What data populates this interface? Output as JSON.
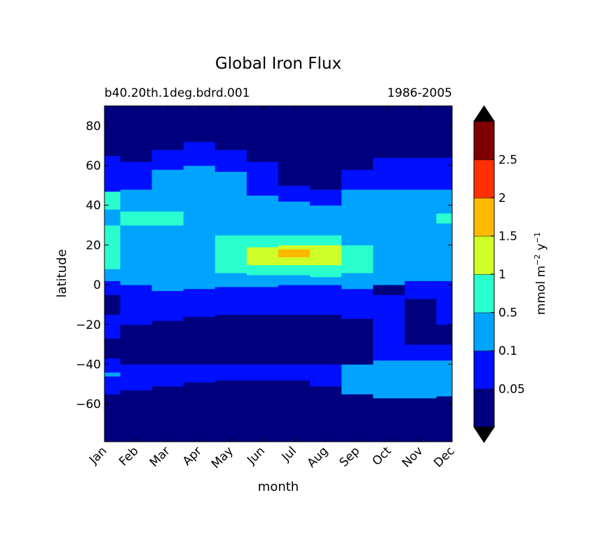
{
  "chart_data": {
    "type": "heatmap",
    "title": "Global Iron Flux",
    "subtitle_left": "b40.20th.1deg.bdrd.001",
    "subtitle_right": "1986-2005",
    "xlabel": "month",
    "ylabel": "latitude",
    "x_ticks": [
      "Jan",
      "Feb",
      "Mar",
      "Apr",
      "May",
      "Jun",
      "Jul",
      "Aug",
      "Sep",
      "Oct",
      "Nov",
      "Dec"
    ],
    "ylim": [
      -79,
      90
    ],
    "y_ticks": [
      {
        "value": 80,
        "label": "80"
      },
      {
        "value": 60,
        "label": "60"
      },
      {
        "value": 40,
        "label": "40"
      },
      {
        "value": 20,
        "label": "20"
      },
      {
        "value": 0,
        "label": "0"
      },
      {
        "value": -20,
        "label": "−20"
      },
      {
        "value": -40,
        "label": "−40"
      },
      {
        "value": -60,
        "label": "−60"
      }
    ],
    "colorbar": {
      "label_main": "mmol m",
      "label_exp1": "−2",
      "label_mid": " y",
      "label_exp2": "−1",
      "levels": [
        "0.05",
        "0.1",
        "0.5",
        "1",
        "1.5",
        "2",
        "2.5"
      ],
      "colors": [
        "#00007f",
        "#0010ff",
        "#00a4ff",
        "#29ffce",
        "#ceff29",
        "#ffb900",
        "#ff3000",
        "#7f0000"
      ],
      "extend_min_color": "#000000",
      "extend_max_color": "#000000"
    },
    "bands": [
      {
        "month": 0,
        "levels": [
          [
            -79,
            -55,
            0
          ],
          [
            -55,
            -46,
            1
          ],
          [
            -46,
            -44,
            2
          ],
          [
            -44,
            -37,
            1
          ],
          [
            -37,
            -27,
            0
          ],
          [
            -27,
            -15,
            1
          ],
          [
            -15,
            -5,
            0
          ],
          [
            -5,
            2,
            1
          ],
          [
            2,
            8,
            2
          ],
          [
            8,
            30,
            3
          ],
          [
            30,
            38,
            2
          ],
          [
            38,
            47,
            3
          ],
          [
            47,
            65,
            1
          ],
          [
            65,
            90,
            0
          ]
        ]
      },
      {
        "month": 1,
        "levels": [
          [
            -79,
            -53,
            0
          ],
          [
            -53,
            -40,
            1
          ],
          [
            -40,
            -20,
            0
          ],
          [
            -20,
            -5,
            1
          ],
          [
            -5,
            0,
            1
          ],
          [
            0,
            9,
            2
          ],
          [
            9,
            30,
            2
          ],
          [
            30,
            37,
            3
          ],
          [
            37,
            48,
            2
          ],
          [
            48,
            62,
            1
          ],
          [
            62,
            90,
            0
          ]
        ]
      },
      {
        "month": 2,
        "levels": [
          [
            -79,
            -51,
            0
          ],
          [
            -51,
            -40,
            1
          ],
          [
            -40,
            -18,
            0
          ],
          [
            -18,
            -3,
            1
          ],
          [
            -3,
            9,
            2
          ],
          [
            9,
            30,
            2
          ],
          [
            30,
            37,
            3
          ],
          [
            37,
            50,
            2
          ],
          [
            50,
            58,
            2
          ],
          [
            58,
            68,
            1
          ],
          [
            68,
            90,
            0
          ]
        ]
      },
      {
        "month": 3,
        "levels": [
          [
            -79,
            -49,
            0
          ],
          [
            -49,
            -40,
            1
          ],
          [
            -40,
            -16,
            0
          ],
          [
            -16,
            -2,
            1
          ],
          [
            -2,
            8,
            2
          ],
          [
            8,
            13,
            2
          ],
          [
            13,
            30,
            2
          ],
          [
            30,
            52,
            2
          ],
          [
            52,
            60,
            2
          ],
          [
            60,
            72,
            1
          ],
          [
            72,
            90,
            0
          ]
        ]
      },
      {
        "month": 4,
        "levels": [
          [
            -79,
            -48,
            0
          ],
          [
            -48,
            -40,
            1
          ],
          [
            -40,
            -15,
            0
          ],
          [
            -15,
            -1,
            1
          ],
          [
            -1,
            6,
            2
          ],
          [
            6,
            13,
            3
          ],
          [
            13,
            25,
            3
          ],
          [
            25,
            48,
            2
          ],
          [
            48,
            57,
            2
          ],
          [
            57,
            68,
            1
          ],
          [
            68,
            90,
            0
          ]
        ]
      },
      {
        "month": 5,
        "levels": [
          [
            -79,
            -48,
            0
          ],
          [
            -48,
            -40,
            1
          ],
          [
            -40,
            -15,
            0
          ],
          [
            -15,
            -1,
            1
          ],
          [
            -1,
            5,
            2
          ],
          [
            5,
            10,
            3
          ],
          [
            10,
            19,
            4
          ],
          [
            19,
            25,
            3
          ],
          [
            25,
            45,
            2
          ],
          [
            45,
            55,
            1
          ],
          [
            55,
            62,
            1
          ],
          [
            62,
            90,
            0
          ]
        ]
      },
      {
        "month": 6,
        "levels": [
          [
            -79,
            -48,
            0
          ],
          [
            -48,
            -40,
            1
          ],
          [
            -40,
            -15,
            0
          ],
          [
            -15,
            0,
            1
          ],
          [
            0,
            5,
            2
          ],
          [
            5,
            10,
            3
          ],
          [
            10,
            14,
            4
          ],
          [
            14,
            18,
            5
          ],
          [
            18,
            20,
            4
          ],
          [
            20,
            25,
            3
          ],
          [
            25,
            42,
            2
          ],
          [
            42,
            50,
            1
          ],
          [
            50,
            90,
            0
          ]
        ]
      },
      {
        "month": 7,
        "levels": [
          [
            -79,
            -51,
            0
          ],
          [
            -51,
            -40,
            1
          ],
          [
            -40,
            -15,
            0
          ],
          [
            -15,
            0,
            1
          ],
          [
            0,
            4,
            2
          ],
          [
            4,
            10,
            3
          ],
          [
            10,
            20,
            4
          ],
          [
            20,
            25,
            3
          ],
          [
            25,
            40,
            2
          ],
          [
            40,
            48,
            1
          ],
          [
            48,
            90,
            0
          ]
        ]
      },
      {
        "month": 8,
        "levels": [
          [
            -79,
            -55,
            0
          ],
          [
            -55,
            -40,
            2
          ],
          [
            -40,
            -17,
            0
          ],
          [
            -17,
            -2,
            1
          ],
          [
            -2,
            6,
            2
          ],
          [
            6,
            20,
            3
          ],
          [
            20,
            25,
            2
          ],
          [
            25,
            48,
            2
          ],
          [
            48,
            58,
            1
          ],
          [
            58,
            90,
            0
          ]
        ]
      },
      {
        "month": 9,
        "levels": [
          [
            -79,
            -57,
            0
          ],
          [
            -57,
            -38,
            2
          ],
          [
            -38,
            -20,
            1
          ],
          [
            -20,
            -5,
            1
          ],
          [
            -5,
            0,
            0
          ],
          [
            0,
            25,
            2
          ],
          [
            25,
            48,
            2
          ],
          [
            48,
            64,
            1
          ],
          [
            64,
            90,
            0
          ]
        ]
      },
      {
        "month": 10,
        "levels": [
          [
            -79,
            -57,
            0
          ],
          [
            -57,
            -38,
            2
          ],
          [
            -38,
            -30,
            1
          ],
          [
            -30,
            -20,
            0
          ],
          [
            -20,
            -7,
            0
          ],
          [
            -7,
            2,
            1
          ],
          [
            2,
            30,
            2
          ],
          [
            30,
            48,
            2
          ],
          [
            48,
            64,
            1
          ],
          [
            64,
            90,
            0
          ]
        ]
      },
      {
        "month": 11,
        "levels": [
          [
            -79,
            -56,
            0
          ],
          [
            -56,
            -38,
            2
          ],
          [
            -38,
            -30,
            1
          ],
          [
            -30,
            -20,
            0
          ],
          [
            -20,
            -5,
            1
          ],
          [
            -5,
            2,
            1
          ],
          [
            2,
            31,
            2
          ],
          [
            31,
            36,
            3
          ],
          [
            36,
            48,
            2
          ],
          [
            48,
            64,
            1
          ],
          [
            64,
            90,
            0
          ]
        ]
      }
    ]
  }
}
